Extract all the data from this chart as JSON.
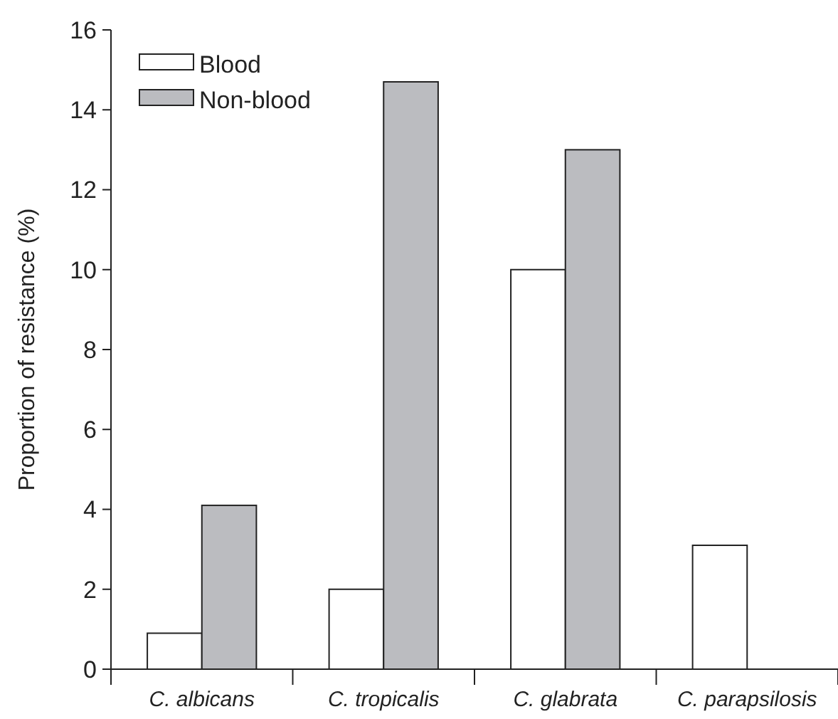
{
  "chart_data": {
    "type": "bar",
    "ylabel": "Proportion of resistance (%)",
    "categories": [
      "C. albicans",
      "C. tropicalis",
      "C. glabrata",
      "C. parapsilosis"
    ],
    "series": [
      {
        "name": "Blood",
        "color": "#ffffff",
        "values": [
          0.9,
          2.0,
          10.0,
          3.1
        ]
      },
      {
        "name": "Non-blood",
        "color": "#bbbcc0",
        "values": [
          4.1,
          14.7,
          13.0,
          0
        ]
      }
    ],
    "ylim": [
      0,
      16
    ],
    "yticks": [
      0,
      2,
      4,
      6,
      8,
      10,
      12,
      14,
      16
    ],
    "grid": false,
    "legend": "top left"
  }
}
